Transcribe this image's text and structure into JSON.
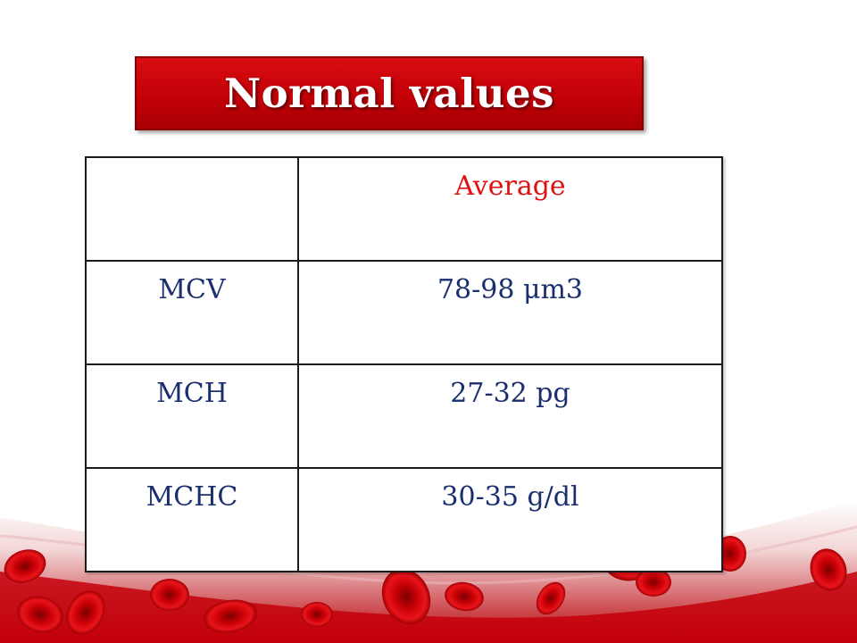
{
  "title": "Normal values",
  "table": {
    "header": [
      "",
      "Average"
    ],
    "rows": [
      {
        "label": "MCV",
        "value": "78-98 μm3"
      },
      {
        "label": "MCH",
        "value": "27-32 pg"
      },
      {
        "label": "MCHC",
        "value": "30-35 g/dl"
      }
    ]
  },
  "colors": {
    "banner": "#c00006",
    "header_text": "#e01010",
    "body_text": "#1b2f6e",
    "cell": "#cc0000"
  },
  "decoration": "red-blood-cells-background"
}
